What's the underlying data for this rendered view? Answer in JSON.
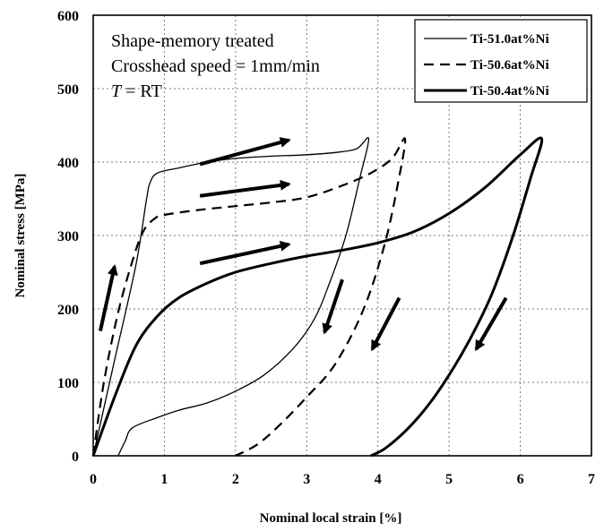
{
  "chart_data": {
    "type": "line",
    "title": "",
    "xlabel": "Nominal local strain [%]",
    "ylabel": "Nominal stress [MPa]",
    "xlim": [
      0,
      7
    ],
    "ylim": [
      0,
      600
    ],
    "xticks": [
      "0",
      "1",
      "2",
      "3",
      "4",
      "5",
      "6",
      "7"
    ],
    "yticks": [
      "0",
      "100",
      "200",
      "300",
      "400",
      "500",
      "600"
    ],
    "grid": true,
    "legend_position": "top-right",
    "annotations": [
      {
        "text": "Shape-memory treated"
      },
      {
        "text": "Crosshead speed = 1mm/min"
      },
      {
        "italic": "T",
        "text": " = RT"
      }
    ],
    "series": [
      {
        "name": "Ti-51.0at%Ni",
        "style": "thin-solid",
        "x": [
          0,
          0.3,
          0.6,
          0.75,
          0.8,
          0.9,
          1.2,
          1.6,
          2.0,
          2.5,
          3.0,
          3.4,
          3.7,
          3.87,
          3.75,
          3.55,
          3.3,
          3.1,
          2.8,
          2.4,
          2.0,
          1.6,
          1.2,
          0.9,
          0.55,
          0.45,
          0.35
        ],
        "y": [
          0,
          130,
          260,
          350,
          372,
          385,
          392,
          400,
          405,
          408,
          410,
          413,
          418,
          432,
          380,
          300,
          230,
          185,
          145,
          110,
          88,
          72,
          62,
          52,
          38,
          20,
          0
        ]
      },
      {
        "name": "Ti-50.6at%Ni",
        "style": "dashed",
        "x": [
          0,
          0.15,
          0.35,
          0.55,
          0.7,
          0.85,
          1.0,
          1.5,
          2.0,
          2.5,
          3.0,
          3.5,
          3.9,
          4.2,
          4.38,
          4.3,
          4.1,
          3.8,
          3.4,
          3.0,
          2.6,
          2.3,
          2.0
        ],
        "y": [
          0,
          100,
          195,
          265,
          305,
          322,
          328,
          335,
          340,
          345,
          352,
          368,
          385,
          405,
          432,
          380,
          290,
          200,
          125,
          80,
          40,
          15,
          0
        ]
      },
      {
        "name": "Ti-50.4at%Ni",
        "style": "thick-solid",
        "x": [
          0,
          0.3,
          0.6,
          0.9,
          1.2,
          1.6,
          2.0,
          2.5,
          3.0,
          3.5,
          4.0,
          4.5,
          5.0,
          5.5,
          6.0,
          6.3,
          6.15,
          5.9,
          5.6,
          5.3,
          5.0,
          4.7,
          4.4,
          4.1,
          3.9
        ],
        "y": [
          0,
          80,
          150,
          190,
          215,
          235,
          250,
          262,
          272,
          280,
          290,
          305,
          330,
          365,
          410,
          432,
          380,
          300,
          220,
          160,
          110,
          68,
          35,
          10,
          0
        ]
      }
    ],
    "arrows": [
      {
        "from": [
          0.1,
          170
        ],
        "to": [
          0.3,
          258
        ]
      },
      {
        "from": [
          1.5,
          397
        ],
        "to": [
          2.75,
          430
        ]
      },
      {
        "from": [
          1.5,
          354
        ],
        "to": [
          2.75,
          370
        ]
      },
      {
        "from": [
          1.5,
          262
        ],
        "to": [
          2.75,
          288
        ]
      },
      {
        "from": [
          3.5,
          240
        ],
        "to": [
          3.25,
          168
        ]
      },
      {
        "from": [
          4.3,
          215
        ],
        "to": [
          3.92,
          145
        ]
      },
      {
        "from": [
          5.8,
          215
        ],
        "to": [
          5.38,
          145
        ]
      }
    ]
  }
}
